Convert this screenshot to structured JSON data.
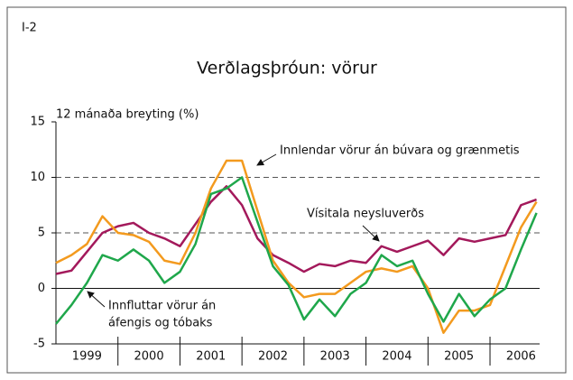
{
  "chart_data": {
    "type": "line",
    "label": "I-2",
    "title": "Verðlagsþróun: vörur",
    "ylabel": "12 mánaða breyting (%)",
    "x": [
      1999.0,
      1999.25,
      1999.5,
      1999.75,
      2000.0,
      2000.25,
      2000.5,
      2000.75,
      2001.0,
      2001.25,
      2001.5,
      2001.75,
      2002.0,
      2002.25,
      2002.5,
      2002.75,
      2003.0,
      2003.25,
      2003.5,
      2003.75,
      2004.0,
      2004.25,
      2004.5,
      2004.75,
      2005.0,
      2005.25,
      2005.5,
      2005.75,
      2006.0,
      2006.25,
      2006.5,
      2006.75
    ],
    "series": [
      {
        "name": "Vísitala neysluverðs",
        "color": "#a3195b",
        "values": [
          1.3,
          1.6,
          3.3,
          5.0,
          5.6,
          5.9,
          5.0,
          4.5,
          3.8,
          5.8,
          7.8,
          9.2,
          7.5,
          4.5,
          3.0,
          2.3,
          1.5,
          2.2,
          2.0,
          2.5,
          2.3,
          3.8,
          3.3,
          3.8,
          4.3,
          3.0,
          4.5,
          4.2,
          4.5,
          4.8,
          7.5,
          8.0
        ]
      },
      {
        "name": "Innlendar vörur án búvara og grænmetis",
        "color": "#f39a1e",
        "values": [
          2.3,
          3.0,
          4.0,
          6.5,
          5.0,
          4.8,
          4.2,
          2.5,
          2.2,
          5.0,
          9.0,
          11.5,
          11.5,
          7.0,
          2.5,
          0.5,
          -0.8,
          -0.5,
          -0.5,
          0.5,
          1.5,
          1.8,
          1.5,
          2.0,
          0.0,
          -4.0,
          -2.0,
          -2.0,
          -1.5,
          2.0,
          5.5,
          7.8
        ]
      },
      {
        "name": "Innfluttar vörur án áfengis og tóbaks",
        "color": "#1fa74b",
        "values": [
          -3.2,
          -1.5,
          0.5,
          3.0,
          2.5,
          3.5,
          2.5,
          0.5,
          1.5,
          4.0,
          8.5,
          9.0,
          10.0,
          6.0,
          2.0,
          0.3,
          -2.8,
          -1.0,
          -2.5,
          -0.5,
          0.5,
          3.0,
          2.0,
          2.5,
          -0.5,
          -3.0,
          -0.5,
          -2.5,
          -1.0,
          0.0,
          3.5,
          6.8
        ]
      }
    ],
    "annotations": [
      "Innlendar vörur án búvara og grænmetis",
      "Vísitala neysluverðs",
      "Innfluttar vörur án",
      "áfengis og tóbaks"
    ],
    "xlim": [
      1999,
      2006.8
    ],
    "xticks": [
      2000,
      2001,
      2002,
      2003,
      2004,
      2005,
      2006
    ],
    "xlabels": [
      {
        "value": 1999.5,
        "label": "1999"
      },
      {
        "value": 2000.5,
        "label": "2000"
      },
      {
        "value": 2001.5,
        "label": "2001"
      },
      {
        "value": 2002.5,
        "label": "2002"
      },
      {
        "value": 2003.5,
        "label": "2003"
      },
      {
        "value": 2004.5,
        "label": "2004"
      },
      {
        "value": 2005.5,
        "label": "2005"
      },
      {
        "value": 2006.5,
        "label": "2006"
      }
    ],
    "ylim": [
      -5,
      15
    ],
    "yticks": [
      -5,
      0,
      5,
      10,
      15
    ],
    "grid_values": [
      5,
      10
    ],
    "zero_line": true
  }
}
